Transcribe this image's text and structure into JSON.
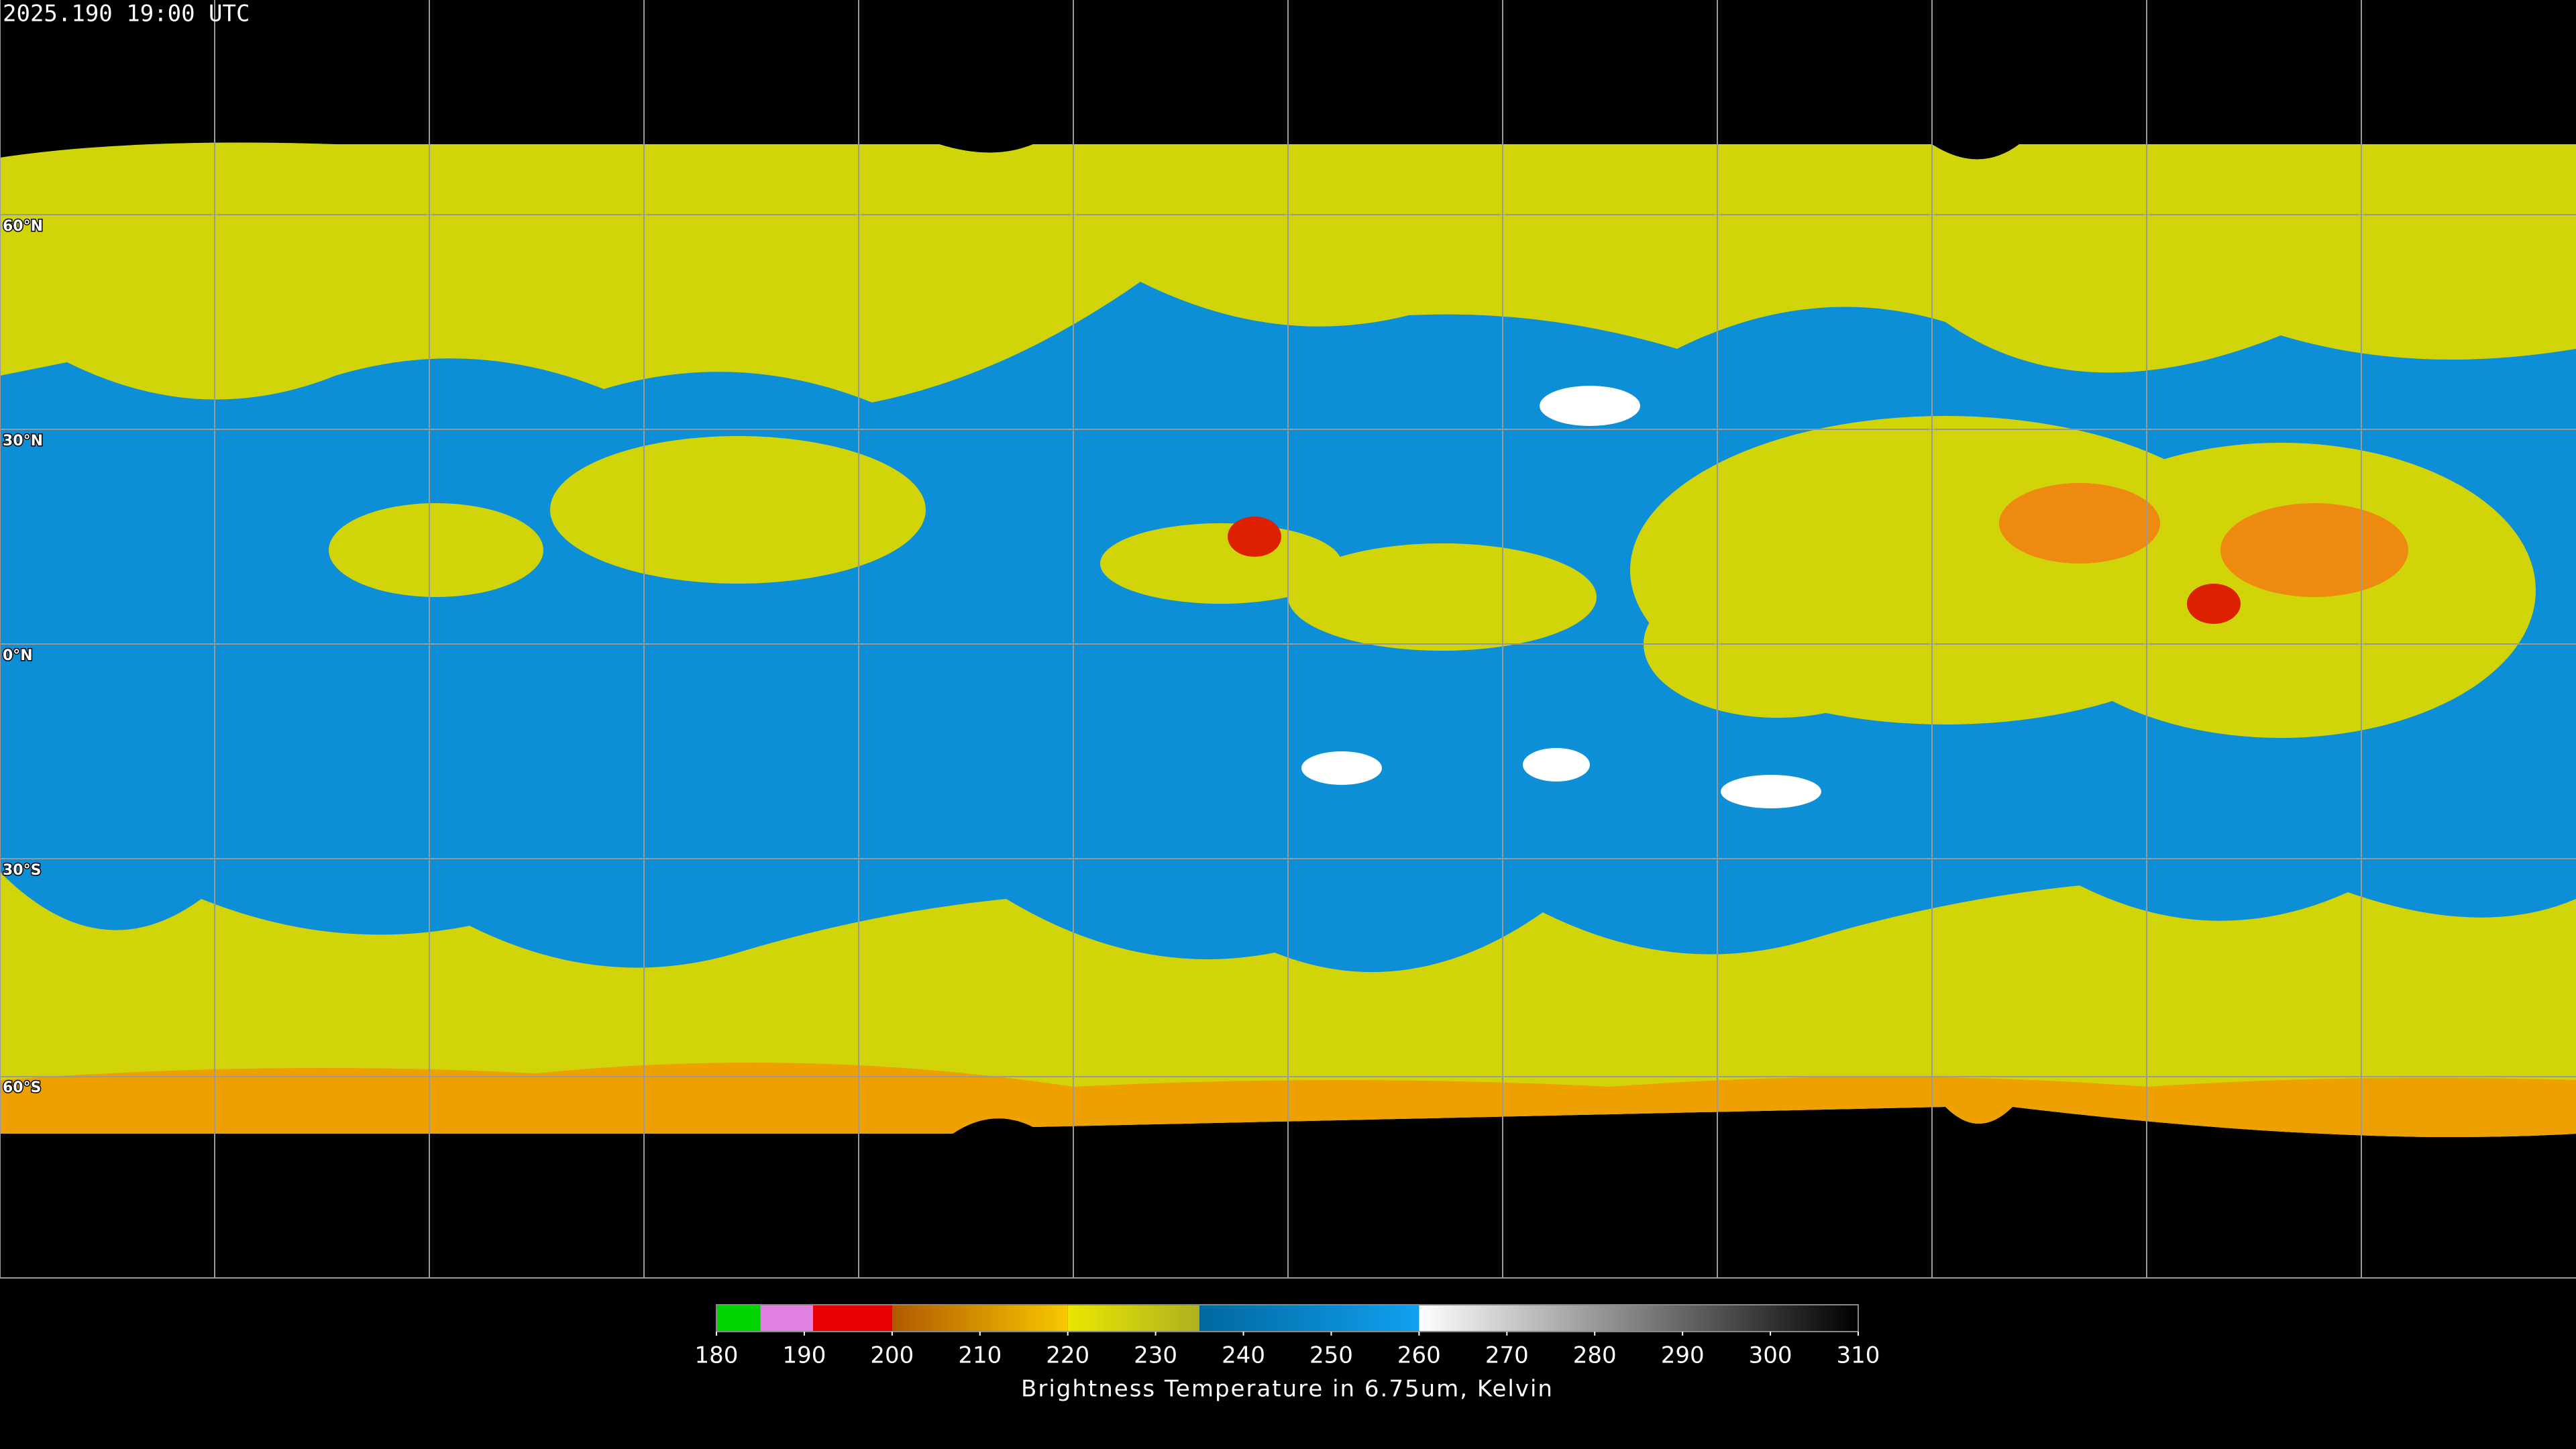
{
  "header": {
    "title": "2025.190 19:00 UTC"
  },
  "map": {
    "lat_labels": [
      "60°N",
      "30°N",
      "0°N",
      "30°S",
      "60°S"
    ]
  },
  "colorbar": {
    "lim": [
      180,
      310
    ],
    "ticks": [
      180,
      190,
      200,
      210,
      220,
      230,
      240,
      250,
      260,
      270,
      280,
      290,
      300,
      310
    ],
    "label": "Brightness Temperature in 6.75um, Kelvin",
    "segments": [
      {
        "from": 180,
        "to": 185,
        "colors": [
          "#00d400",
          "#00d400"
        ]
      },
      {
        "from": 185,
        "to": 191,
        "colors": [
          "#e080e0",
          "#e080e0"
        ]
      },
      {
        "from": 191,
        "to": 200,
        "colors": [
          "#e80000",
          "#e80000"
        ]
      },
      {
        "from": 200,
        "to": 220,
        "colors": [
          "#b05a00",
          "#f8c800"
        ]
      },
      {
        "from": 220,
        "to": 235,
        "colors": [
          "#e8e800",
          "#b0b020"
        ]
      },
      {
        "from": 235,
        "to": 260,
        "colors": [
          "#00689e",
          "#10a0f0"
        ]
      },
      {
        "from": 260,
        "to": 310,
        "colors": [
          "#ffffff",
          "#000000"
        ]
      }
    ]
  }
}
